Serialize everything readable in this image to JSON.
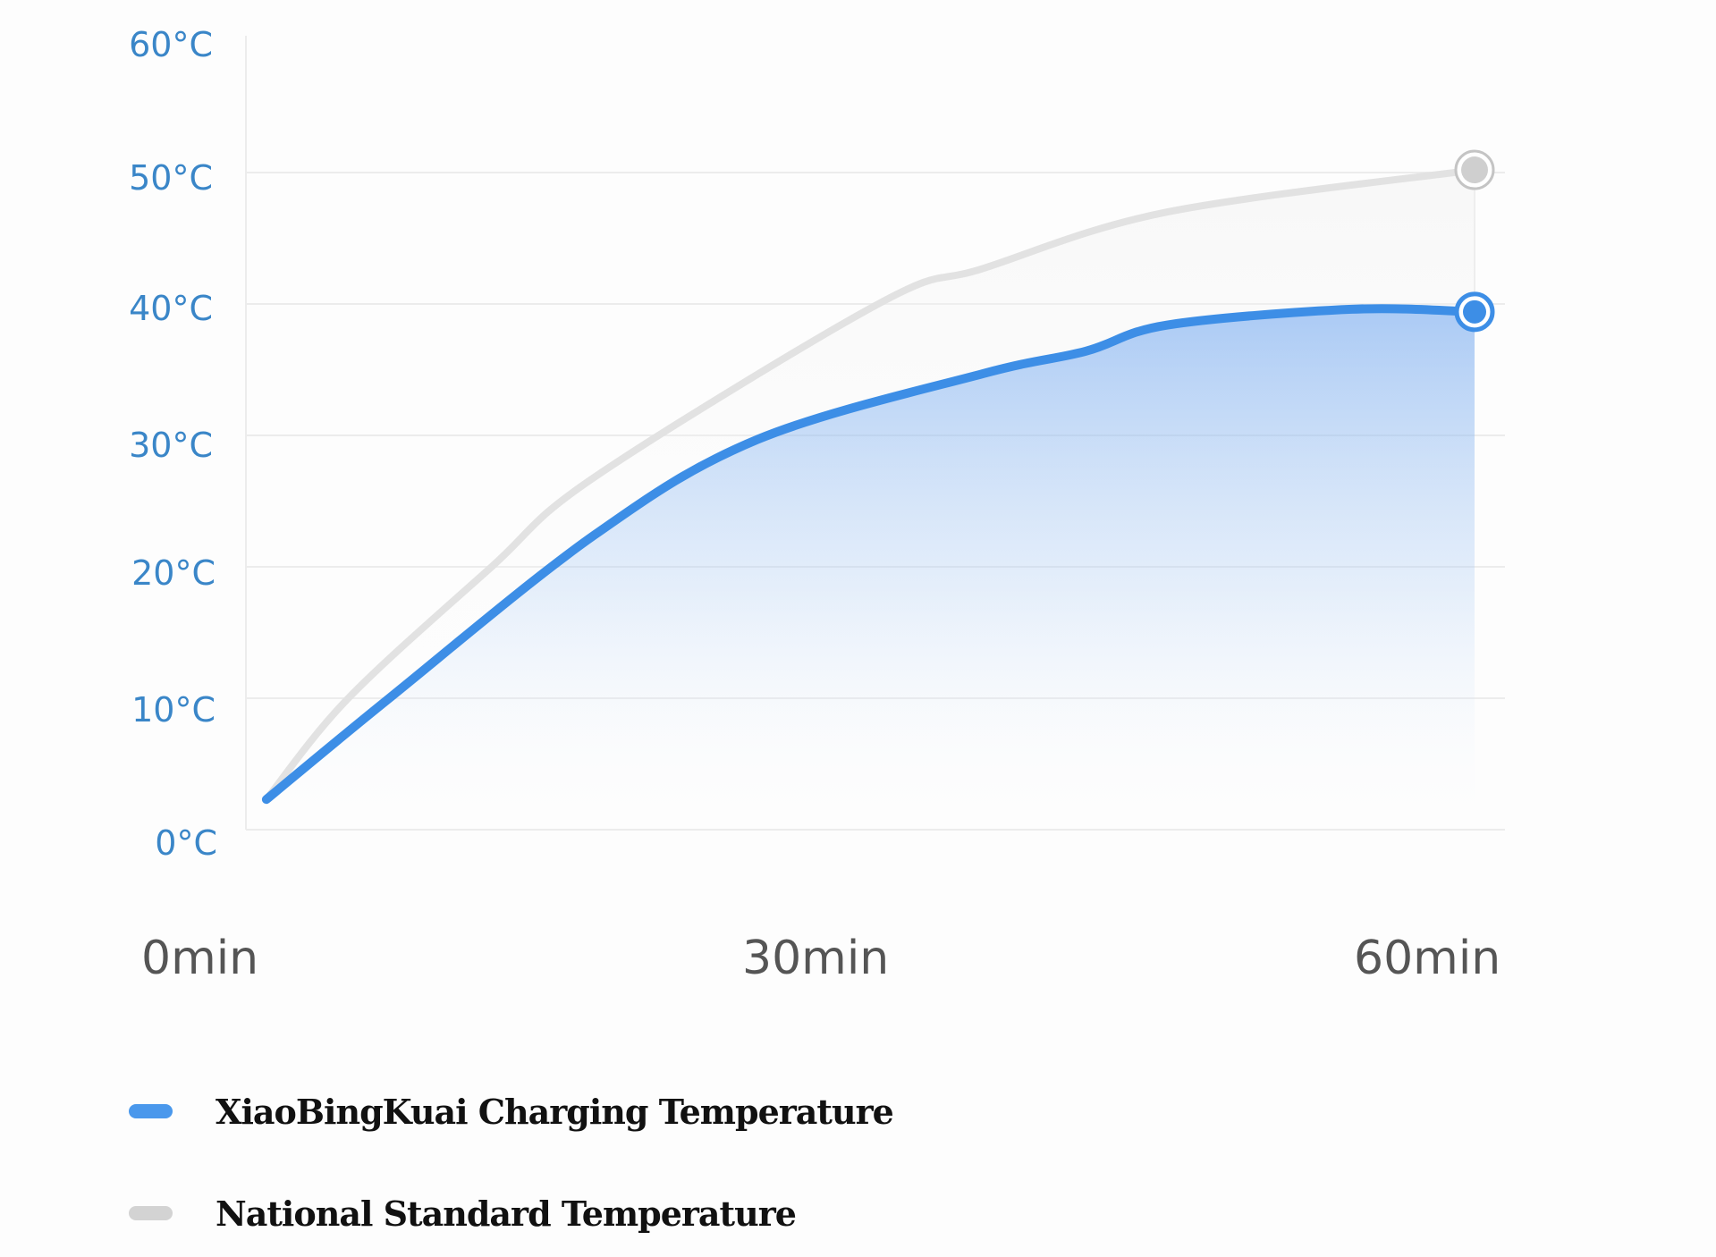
{
  "chart_data": {
    "type": "line",
    "title": "",
    "xlabel": "",
    "ylabel": "",
    "x_ticks": [
      "0min",
      "30min",
      "60min"
    ],
    "y_ticks": [
      "60°C",
      "50°C",
      "40°C",
      "30°C",
      "20°C",
      "10°C",
      "0°C"
    ],
    "ylim": [
      0,
      60
    ],
    "xlim": [
      0,
      60
    ],
    "grid": "horizontal",
    "legend_position": "bottom-left",
    "series": [
      {
        "name": "XiaoBingKuai  Charging Temperature",
        "color": "#3d8ee6",
        "area_fill": true,
        "x": [
          1,
          7,
          17,
          25,
          36,
          41,
          45,
          54,
          60
        ],
        "values": [
          2.3,
          10,
          22.4,
          29.7,
          34.7,
          36.4,
          38.4,
          39.6,
          39.4
        ]
      },
      {
        "name": "National Standard Temperature",
        "color": "#d2d2d2",
        "area_fill": false,
        "x": [
          1,
          5,
          12,
          17,
          31,
          36,
          45,
          60
        ],
        "values": [
          2.3,
          10,
          20,
          26.8,
          40.1,
          42.7,
          47.0,
          50.2
        ]
      }
    ]
  },
  "axis": {
    "y_labels": [
      "60°C",
      "50°C",
      "40°C",
      "30°C",
      "20°C",
      "10°C",
      "0°C"
    ],
    "x_labels": [
      "0min",
      "30min",
      "60min"
    ]
  },
  "legend": {
    "items": [
      {
        "label": "XiaoBingKuai  Charging Temperature",
        "color": "#4a98ec"
      },
      {
        "label": "National Standard Temperature",
        "color": "#d3d3d3"
      }
    ]
  },
  "colors": {
    "accent_blue": "#3d8ee6",
    "standard_gray": "#e2e2e2",
    "tick_label_blue": "#3a86c8",
    "x_label_gray": "#555555",
    "gridline": "#ececec"
  }
}
